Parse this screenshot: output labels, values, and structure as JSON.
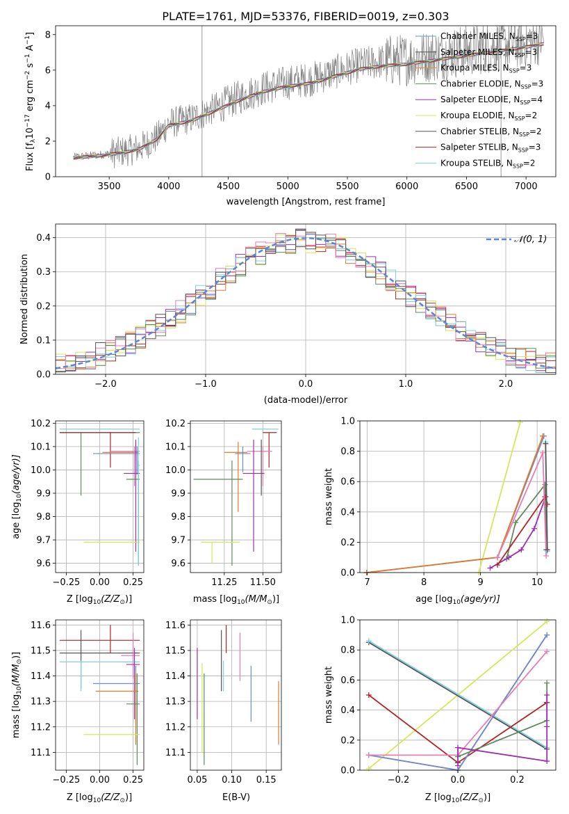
{
  "figure": {
    "title": "PLATE=1761, MJD=53376, FIBERID=0019, z=0.303"
  },
  "colors": {
    "cm": "#6A8BD9",
    "sm": "#4D4D4D",
    "km": "#E88A2E",
    "ce": "#5E8A5E",
    "se": "#9B2FB0",
    "ke": "#D6E65A",
    "cs": "#555555",
    "ss": "#B52323",
    "ks": "#7FD0DE",
    "data": "#808080",
    "norm": "#5B86D6",
    "c10": "#E67DB3",
    "c11": "#E07A2A"
  },
  "chart_data": [
    {
      "id": "spectrum",
      "type": "line",
      "xlabel": "wavelength [Angstrom, rest frame]",
      "ylabel_main": "Flux [f",
      "ylabel_sub_lambda": "λ",
      "ylabel_tail": "10",
      "ylabel_exp1": "−17",
      "ylabel_units": " erg cm",
      "ylabel_exp2": "−2",
      "ylabel_s": " s",
      "ylabel_exp3": "−1",
      "ylabel_A": " A",
      "ylabel_exp4": "−1",
      "ylabel_close": "]",
      "xlim": [
        3050,
        7250
      ],
      "ylim": [
        0,
        8.5
      ],
      "xticks": [
        3500,
        4000,
        4500,
        5000,
        5500,
        6000,
        6500,
        7000
      ],
      "yticks": [
        0,
        2,
        4,
        6,
        8
      ],
      "legend": [
        {
          "name": "Chabrier MILES",
          "n": "3",
          "color": "cm"
        },
        {
          "name": "Salpeter MILES",
          "n": "3",
          "color": "sm"
        },
        {
          "name": "Kroupa MILES",
          "n": "3",
          "color": "km"
        },
        {
          "name": "Chabrier ELODIE",
          "n": "3",
          "color": "ce"
        },
        {
          "name": "Salpeter ELODIE",
          "n": "4",
          "color": "se"
        },
        {
          "name": "Kroupa ELODIE",
          "n": "2",
          "color": "ke"
        },
        {
          "name": "Chabrier STELIB",
          "n": "2",
          "color": "cs"
        },
        {
          "name": "Salpeter STELIB",
          "n": "3",
          "color": "ss"
        },
        {
          "name": "Kroupa STELIB",
          "n": "2",
          "color": "ks"
        }
      ],
      "legend_prefix": ", N",
      "legend_sub": "SSP",
      "legend_eq": "=",
      "continuum": [
        [
          3200,
          1.1
        ],
        [
          3450,
          1.25
        ],
        [
          3600,
          1.4
        ],
        [
          3750,
          1.6
        ],
        [
          3900,
          2.2
        ],
        [
          4000,
          3.0
        ],
        [
          4200,
          3.3
        ],
        [
          4400,
          3.9
        ],
        [
          4600,
          4.5
        ],
        [
          4800,
          5.0
        ],
        [
          5000,
          5.3
        ],
        [
          5200,
          5.5
        ],
        [
          5400,
          5.9
        ],
        [
          5600,
          6.3
        ],
        [
          5800,
          6.5
        ],
        [
          6000,
          6.6
        ],
        [
          6200,
          6.8
        ],
        [
          6400,
          7.0
        ],
        [
          6600,
          7.2
        ],
        [
          6800,
          7.4
        ],
        [
          7000,
          7.6
        ],
        [
          7150,
          7.8
        ]
      ]
    },
    {
      "id": "residuals",
      "type": "histogram",
      "xlabel": "(data-model)/error",
      "ylabel": "Normed distribution",
      "xlim": [
        -2.5,
        2.5
      ],
      "ylim": [
        0,
        0.44
      ],
      "xticks": [
        -2,
        -1,
        0,
        1,
        2
      ],
      "yticks": [
        0.0,
        0.1,
        0.2,
        0.3,
        0.4
      ],
      "legend_label": "𝒩(0, 1)",
      "bin_width": 0.1,
      "hist_colors": [
        "ss",
        "c11",
        "se",
        "ke",
        "ks",
        "ce",
        "c10",
        "cs"
      ]
    },
    {
      "id": "age_vs_Z",
      "type": "errorbar",
      "xlabel_main": "Z [log",
      "xlabel_sub": "10",
      "xlabel_arg": "(Z/Z",
      "xlabel_sun": "⊙",
      "xlabel_close": ")]",
      "ylabel_main": "age  [log",
      "ylabel_sub": "10",
      "ylabel_arg": "(age/yr)]",
      "xlim": [
        -0.33,
        0.33
      ],
      "ylim": [
        9.56,
        10.21
      ],
      "xticks": [
        -0.25,
        0.0,
        0.25
      ],
      "yticks": [
        9.6,
        9.7,
        9.8,
        9.9,
        10.0,
        10.1,
        10.2
      ],
      "points": [
        {
          "x": -0.14,
          "y": 10.16,
          "xl": -0.3,
          "xh": 0.3,
          "yl": 9.89,
          "yh": 10.16,
          "c": "ce"
        },
        {
          "x": 0.0,
          "y": 10.175,
          "xl": -0.3,
          "xh": 0.3,
          "yl": 10.175,
          "yh": 10.175,
          "c": "ks"
        },
        {
          "x": 0.08,
          "y": 10.16,
          "xl": -0.3,
          "xh": 0.27,
          "yl": 10.01,
          "yh": 10.16,
          "c": "ss"
        },
        {
          "x": 0.26,
          "y": 10.08,
          "xl": 0.08,
          "xh": 0.3,
          "yl": 9.93,
          "yh": 10.1,
          "c": "c10"
        },
        {
          "x": 0.27,
          "y": 10.075,
          "xl": 0.02,
          "xh": 0.29,
          "yl": 10.04,
          "yh": 10.12,
          "c": "c11"
        },
        {
          "x": 0.28,
          "y": 10.07,
          "xl": -0.05,
          "xh": 0.3,
          "yl": 9.98,
          "yh": 10.1,
          "c": "cm"
        },
        {
          "x": 0.27,
          "y": 9.985,
          "xl": 0.18,
          "xh": 0.3,
          "yl": 9.65,
          "yh": 10.13,
          "c": "se"
        },
        {
          "x": 0.29,
          "y": 9.96,
          "xl": 0.2,
          "xh": 0.3,
          "yl": 9.59,
          "yh": 10.04,
          "c": "ce"
        },
        {
          "x": 0.1,
          "y": 9.69,
          "xl": -0.12,
          "xh": 0.3,
          "yl": 9.69,
          "yh": 9.69,
          "c": "ke"
        },
        {
          "x": 0.29,
          "y": 10.02,
          "xl": 0.28,
          "xh": 0.3,
          "yl": 9.59,
          "yh": 10.14,
          "c": "ks"
        }
      ]
    },
    {
      "id": "age_vs_mass",
      "type": "errorbar",
      "xlabel_main": "mass [log",
      "xlabel_sub": "10",
      "xlabel_arg": "(M/M",
      "xlabel_sun": "⊙",
      "xlabel_close": ")]",
      "xlim": [
        11.03,
        11.62
      ],
      "ylim": [
        9.56,
        10.21
      ],
      "xticks": [
        11.25,
        11.5
      ],
      "yticks": [
        9.6,
        9.7,
        9.8,
        9.9,
        10.0,
        10.1,
        10.2
      ],
      "points": [
        {
          "x": 11.48,
          "y": 10.175,
          "xl": 11.43,
          "xh": 11.6,
          "yl": 10.175,
          "yh": 10.175,
          "c": "ks"
        },
        {
          "x": 11.54,
          "y": 10.16,
          "xl": 11.5,
          "xh": 11.59,
          "yl": 10.01,
          "yh": 10.16,
          "c": "ss"
        },
        {
          "x": 11.5,
          "y": 10.08,
          "xl": 11.4,
          "xh": 11.56,
          "yl": 9.93,
          "yh": 10.1,
          "c": "c10"
        },
        {
          "x": 11.34,
          "y": 10.075,
          "xl": 11.25,
          "xh": 11.4,
          "yl": 9.82,
          "yh": 10.12,
          "c": "c11"
        },
        {
          "x": 11.37,
          "y": 10.07,
          "xl": 11.32,
          "xh": 11.42,
          "yl": 9.99,
          "yh": 10.1,
          "c": "cm"
        },
        {
          "x": 11.44,
          "y": 9.985,
          "xl": 11.37,
          "xh": 11.51,
          "yl": 9.65,
          "yh": 10.13,
          "c": "se"
        },
        {
          "x": 11.3,
          "y": 9.96,
          "xl": 11.05,
          "xh": 11.37,
          "yl": 9.59,
          "yh": 10.04,
          "c": "ce"
        },
        {
          "x": 11.17,
          "y": 9.69,
          "xl": 11.1,
          "xh": 11.35,
          "yl": 9.6,
          "yh": 9.69,
          "c": "ke"
        },
        {
          "x": 11.49,
          "y": 10.02,
          "xl": 11.49,
          "xh": 11.49,
          "yl": 9.89,
          "yh": 10.13,
          "c": "cs"
        }
      ]
    },
    {
      "id": "weight_vs_age",
      "type": "line",
      "xlabel_main": "age  [log",
      "xlabel_sub": "10",
      "xlabel_arg": "(age/yr)]",
      "ylabel": "mass weight",
      "xlim": [
        6.87,
        10.33
      ],
      "ylim": [
        0,
        1
      ],
      "xticks": [
        7,
        8,
        9,
        10
      ],
      "yticks": [
        0.0,
        0.2,
        0.4,
        0.6,
        0.8,
        1.0
      ],
      "series": [
        {
          "c": "ke",
          "x": [
            8.97,
            9.7
          ],
          "y": [
            0.0,
            0.99
          ]
        },
        {
          "c": "cm",
          "x": [
            6.99,
            9.3,
            10.12
          ],
          "y": [
            0.0,
            0.1,
            0.9
          ]
        },
        {
          "c": "c11",
          "x": [
            6.99,
            9.3,
            10.1
          ],
          "y": [
            0.0,
            0.1,
            0.9
          ]
        },
        {
          "c": "ce",
          "x": [
            9.46,
            9.62,
            10.14,
            10.16
          ],
          "y": [
            0.09,
            0.33,
            0.58,
            0.15
          ]
        },
        {
          "c": "se",
          "x": [
            9.17,
            9.5,
            9.72,
            9.95,
            10.15,
            10.17
          ],
          "y": [
            0.03,
            0.1,
            0.15,
            0.29,
            0.5,
            0.45
          ]
        },
        {
          "c": "ss",
          "x": [
            9.3,
            10.14,
            10.18
          ],
          "y": [
            0.05,
            0.5,
            0.45
          ]
        },
        {
          "c": "c10",
          "x": [
            9.3,
            10.1,
            10.16
          ],
          "y": [
            0.1,
            0.79,
            0.11
          ]
        },
        {
          "c": "ks",
          "x": [
            10.15,
            10.18
          ],
          "y": [
            0.86,
            0.14
          ]
        },
        {
          "c": "cs",
          "x": [
            10.15,
            10.18
          ],
          "y": [
            0.85,
            0.15
          ]
        }
      ]
    },
    {
      "id": "mass_vs_Z",
      "type": "errorbar",
      "xlabel_main": "Z [log",
      "xlabel_sub": "10",
      "xlabel_arg": "(Z/Z",
      "xlabel_sun": "⊙",
      "xlabel_close": ")]",
      "ylabel_main": "mass [log",
      "ylabel_sub": "10",
      "ylabel_arg": "(M/M",
      "ylabel_sun": "⊙",
      "ylabel_close": ")]",
      "xlim": [
        -0.33,
        0.33
      ],
      "ylim": [
        11.03,
        11.62
      ],
      "xticks": [
        -0.25,
        0.0,
        0.25
      ],
      "yticks": [
        11.1,
        11.2,
        11.3,
        11.4,
        11.5,
        11.6
      ],
      "points": [
        {
          "x": 0.08,
          "y": 11.54,
          "xl": -0.3,
          "xh": 0.3,
          "yl": 11.49,
          "yh": 11.6,
          "c": "ss"
        },
        {
          "x": -0.14,
          "y": 11.49,
          "xl": -0.3,
          "xh": 0.3,
          "yl": 11.35,
          "yh": 11.58,
          "c": "cs"
        },
        {
          "x": 0.25,
          "y": 11.48,
          "xl": 0.16,
          "xh": 0.3,
          "yl": 11.39,
          "yh": 11.57,
          "c": "c10"
        },
        {
          "x": -0.14,
          "y": 11.455,
          "xl": -0.3,
          "xh": 0.3,
          "yl": 11.34,
          "yh": 11.46,
          "c": "ks"
        },
        {
          "x": 0.26,
          "y": 11.445,
          "xl": 0.2,
          "xh": 0.3,
          "yl": 11.23,
          "yh": 11.51,
          "c": "se"
        },
        {
          "x": 0.27,
          "y": 11.37,
          "xl": -0.05,
          "xh": 0.3,
          "yl": 11.21,
          "yh": 11.44,
          "c": "cm"
        },
        {
          "x": 0.27,
          "y": 11.34,
          "xl": -0.03,
          "xh": 0.29,
          "yl": 11.13,
          "yh": 11.41,
          "c": "c11"
        },
        {
          "x": 0.28,
          "y": 11.29,
          "xl": 0.2,
          "xh": 0.3,
          "yl": 11.05,
          "yh": 11.41,
          "c": "ce"
        },
        {
          "x": 0.1,
          "y": 11.17,
          "xl": -0.12,
          "xh": 0.3,
          "yl": 11.17,
          "yh": 11.17,
          "c": "ke"
        }
      ]
    },
    {
      "id": "mass_vs_ebv",
      "type": "errorbar",
      "xlabel": "E(B-V)",
      "xlim": [
        0.04,
        0.172
      ],
      "ylim": [
        11.03,
        11.62
      ],
      "xticks": [
        0.05,
        0.1,
        0.15
      ],
      "yticks": [
        11.1,
        11.2,
        11.3,
        11.4,
        11.5,
        11.6
      ],
      "points": [
        {
          "x": 0.05,
          "y": 11.37,
          "xl": 0.05,
          "xh": 0.05,
          "yl": 11.23,
          "yh": 11.51,
          "c": "se"
        },
        {
          "x": 0.057,
          "y": 11.3,
          "xl": 0.057,
          "xh": 0.057,
          "yl": 11.1,
          "yh": 11.45,
          "c": "ke"
        },
        {
          "x": 0.06,
          "y": 11.23,
          "xl": 0.06,
          "xh": 0.06,
          "yl": 11.05,
          "yh": 11.41,
          "c": "ce"
        },
        {
          "x": 0.085,
          "y": 11.46,
          "xl": 0.085,
          "xh": 0.085,
          "yl": 11.34,
          "yh": 11.58,
          "c": "cs"
        },
        {
          "x": 0.088,
          "y": 11.4,
          "xl": 0.088,
          "xh": 0.088,
          "yl": 11.34,
          "yh": 11.46,
          "c": "ks"
        },
        {
          "x": 0.092,
          "y": 11.55,
          "xl": 0.092,
          "xh": 0.092,
          "yl": 11.49,
          "yh": 11.6,
          "c": "ss"
        },
        {
          "x": 0.112,
          "y": 11.48,
          "xl": 0.112,
          "xh": 0.112,
          "yl": 11.38,
          "yh": 11.57,
          "c": "c10"
        },
        {
          "x": 0.128,
          "y": 11.33,
          "xl": 0.128,
          "xh": 0.128,
          "yl": 11.22,
          "yh": 11.44,
          "c": "cm"
        },
        {
          "x": 0.168,
          "y": 11.25,
          "xl": 0.168,
          "xh": 0.168,
          "yl": 11.13,
          "yh": 11.38,
          "c": "c11"
        }
      ]
    },
    {
      "id": "weight_vs_Z",
      "type": "line",
      "xlabel_main": "Z [log",
      "xlabel_sub": "10",
      "xlabel_arg": "(Z/Z",
      "xlabel_sun": "⊙",
      "xlabel_close": ")]",
      "ylabel": "mass weight",
      "xlim": [
        -0.33,
        0.33
      ],
      "ylim": [
        0,
        1
      ],
      "xticks": [
        -0.2,
        0.0,
        0.2
      ],
      "yticks": [
        0.0,
        0.2,
        0.4,
        0.6,
        0.8,
        1.0
      ],
      "series": [
        {
          "c": "ke",
          "x": [
            -0.3,
            0.3
          ],
          "y": [
            0.01,
            0.99
          ]
        },
        {
          "c": "cs",
          "x": [
            -0.3,
            0.3
          ],
          "y": [
            0.85,
            0.14
          ]
        },
        {
          "c": "ks",
          "x": [
            -0.3,
            0.3
          ],
          "y": [
            0.86,
            0.15
          ]
        },
        {
          "c": "ss",
          "x": [
            -0.3,
            0.0,
            0.3,
            0.3
          ],
          "y": [
            0.5,
            0.05,
            0.45,
            0.45
          ]
        },
        {
          "c": "c11",
          "x": [
            -0.3,
            0.0,
            0.3
          ],
          "y": [
            0.1,
            0.0,
            0.9
          ]
        },
        {
          "c": "cm",
          "x": [
            -0.3,
            0.0,
            0.3
          ],
          "y": [
            0.1,
            0.0,
            0.9
          ]
        },
        {
          "c": "c10",
          "x": [
            -0.3,
            0.0,
            0.3
          ],
          "y": [
            0.1,
            0.1,
            0.79
          ]
        },
        {
          "c": "ce",
          "x": [
            0.0,
            0.3,
            0.3
          ],
          "y": [
            0.09,
            0.33,
            0.58
          ]
        },
        {
          "c": "se",
          "x": [
            0.0,
            0.0,
            0.3,
            0.3,
            0.3
          ],
          "y": [
            0.03,
            0.15,
            0.06,
            0.29,
            0.5
          ]
        }
      ]
    }
  ]
}
